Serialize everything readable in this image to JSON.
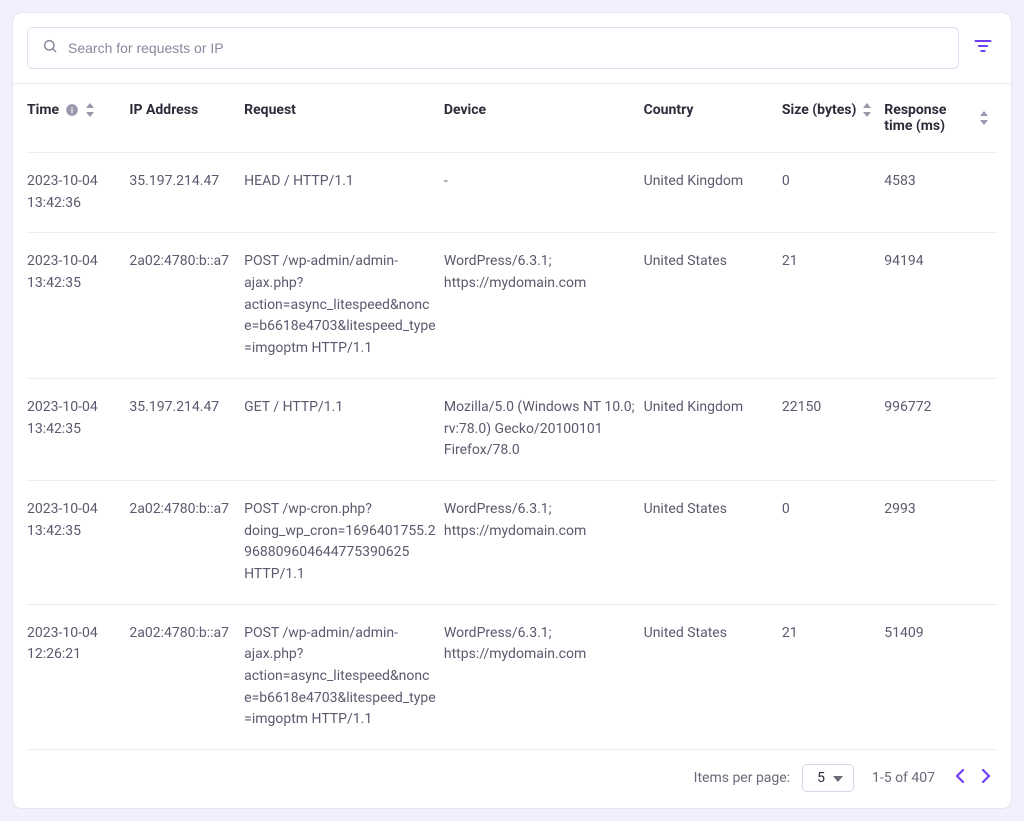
{
  "search": {
    "placeholder": "Search for requests or IP"
  },
  "colors": {
    "primary": "#6f3ff5",
    "icon_muted": "#9a98ac",
    "text": "#2c2c3a",
    "text_muted": "#5a5a6e",
    "border": "#e0def0"
  },
  "columns": {
    "time": "Time",
    "ip": "IP Address",
    "request": "Request",
    "device": "Device",
    "country": "Country",
    "size": "Size (bytes)",
    "response": "Response time (ms)"
  },
  "rows": [
    {
      "time": "2023-10-04 13:42:36",
      "ip": "35.197.214.47",
      "request": "HEAD / HTTP/1.1",
      "device": "-",
      "country": "United Kingdom",
      "size": "0",
      "response": "4583"
    },
    {
      "time": "2023-10-04 13:42:35",
      "ip": "2a02:4780:b::a7",
      "request": "POST /wp-admin/admin-ajax.php?action=async_litespeed&nonce=b6618e4703&litespeed_type=imgoptm HTTP/1.1",
      "device": "WordPress/6.3.1; https://mydomain.com",
      "country": "United States",
      "size": "21",
      "response": "94194"
    },
    {
      "time": "2023-10-04 13:42:35",
      "ip": "35.197.214.47",
      "request": "GET / HTTP/1.1",
      "device": "Mozilla/5.0 (Windows NT 10.0; rv:78.0) Gecko/20100101 Firefox/78.0",
      "country": "United Kingdom",
      "size": "22150",
      "response": "996772"
    },
    {
      "time": "2023-10-04 13:42:35",
      "ip": "2a02:4780:b::a7",
      "request": "POST /wp-cron.php?doing_wp_cron=1696401755.2968809604644775390625 HTTP/1.1",
      "device": "WordPress/6.3.1; https://mydomain.com",
      "country": "United States",
      "size": "0",
      "response": "2993"
    },
    {
      "time": "2023-10-04 12:26:21",
      "ip": "2a02:4780:b::a7",
      "request": "POST /wp-admin/admin-ajax.php?action=async_litespeed&nonce=b6618e4703&litespeed_type=imgoptm HTTP/1.1",
      "device": "WordPress/6.3.1; https://mydomain.com",
      "country": "United States",
      "size": "21",
      "response": "51409"
    }
  ],
  "footer": {
    "items_per_page_label": "Items per page:",
    "per_page_value": "5",
    "range_text": "1-5 of 407"
  }
}
